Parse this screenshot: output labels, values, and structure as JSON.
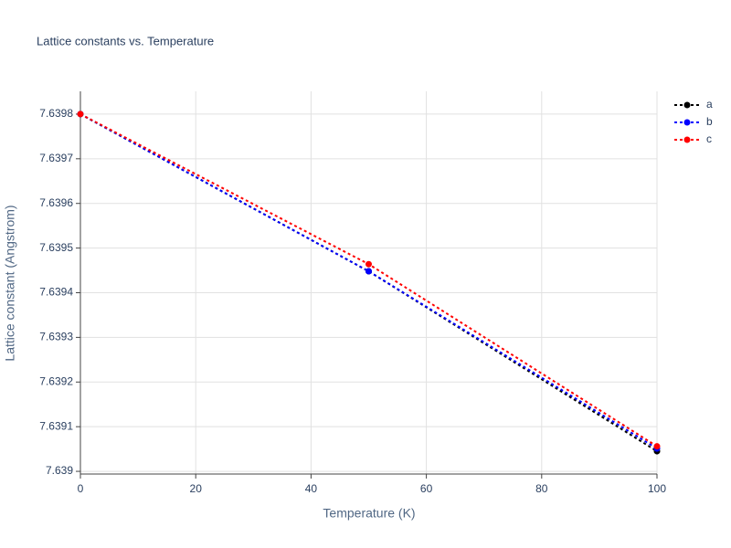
{
  "chart_data": {
    "type": "line",
    "title": "Lattice constants vs. Temperature",
    "x_label": "Temperature (K)",
    "y_label": "Lattice constant (Angstrom)",
    "x": [
      0,
      50,
      100
    ],
    "series": [
      {
        "name": "a",
        "color": "#000000",
        "values": [
          7.6398,
          7.639448,
          7.639045
        ]
      },
      {
        "name": "b",
        "color": "#0000ff",
        "values": [
          7.6398,
          7.639448,
          7.639051
        ]
      },
      {
        "name": "c",
        "color": "#ff0000",
        "values": [
          7.6398,
          7.639464,
          7.639056
        ]
      }
    ],
    "xlim": [
      0,
      100
    ],
    "xticks": [
      0,
      20,
      40,
      60,
      80,
      100
    ],
    "ylim": [
      7.638994,
      7.639851
    ],
    "yticks": [
      7.639,
      7.6391,
      7.6392,
      7.6393,
      7.6394,
      7.6395,
      7.6396,
      7.6397,
      7.6398
    ],
    "grid": true,
    "legend": "top-right",
    "line_style": "dotted"
  }
}
